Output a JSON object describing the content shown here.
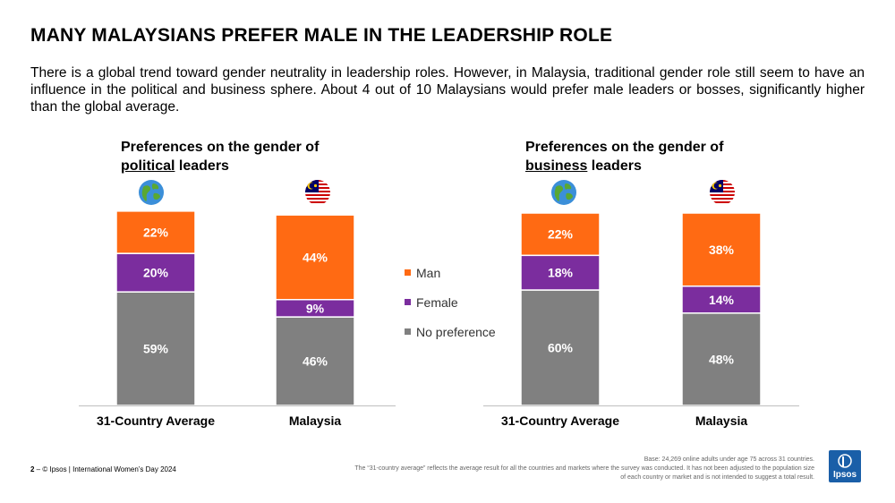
{
  "title": "MANY MALAYSIANS PREFER MALE IN THE LEADERSHIP ROLE",
  "intro": "There is a global trend toward gender neutrality in leadership roles. However, in Malaysia, traditional gender role still seem to have an influence in the political and business sphere. About 4 out of 10 Malaysians would prefer male leaders or bosses, significantly higher than the global average.",
  "charts": {
    "political": {
      "title_before": "Preferences on the gender of",
      "title_underlined": "political",
      "title_after": " leaders"
    },
    "business": {
      "title_before": "Preferences on the gender of",
      "title_underlined": "business",
      "title_after": " leaders"
    }
  },
  "icons": {
    "average": "globe-icon",
    "malaysia": "malaysia-flag-icon"
  },
  "legend": [
    {
      "label": "Man",
      "color": "#ff6a13"
    },
    {
      "label": "Female",
      "color": "#7b2d9e"
    },
    {
      "label": "No preference",
      "color": "#808080"
    }
  ],
  "chart_data": [
    {
      "type": "bar",
      "stacked": true,
      "title": "Preferences on the gender of political leaders",
      "categories": [
        "31-Country Average",
        "Malaysia"
      ],
      "series": [
        {
          "name": "No preference",
          "values": [
            59,
            46
          ],
          "color": "#808080"
        },
        {
          "name": "Female",
          "values": [
            20,
            9
          ],
          "color": "#7b2d9e"
        },
        {
          "name": "Man",
          "values": [
            22,
            44
          ],
          "color": "#ff6a13"
        }
      ],
      "value_suffix": "%",
      "ylim": [
        0,
        100
      ]
    },
    {
      "type": "bar",
      "stacked": true,
      "title": "Preferences on the gender of business leaders",
      "categories": [
        "31-Country Average",
        "Malaysia"
      ],
      "series": [
        {
          "name": "No preference",
          "values": [
            60,
            48
          ],
          "color": "#808080"
        },
        {
          "name": "Female",
          "values": [
            18,
            14
          ],
          "color": "#7b2d9e"
        },
        {
          "name": "Man",
          "values": [
            22,
            38
          ],
          "color": "#ff6a13"
        }
      ],
      "value_suffix": "%",
      "ylim": [
        0,
        100
      ]
    }
  ],
  "footer": {
    "page_number": "2",
    "source": " – © Ipsos | International Women’s Day 2024",
    "base_note": "Base: 24,269 online adults under age 75 across 31 countries.",
    "average_note": "The “31-country average” reflects the average result for all the countries and markets where the survey was conducted. It has not been adjusted to the population size of each country or market and is not intended to suggest a total result."
  },
  "logo": {
    "text": "Ipsos"
  }
}
